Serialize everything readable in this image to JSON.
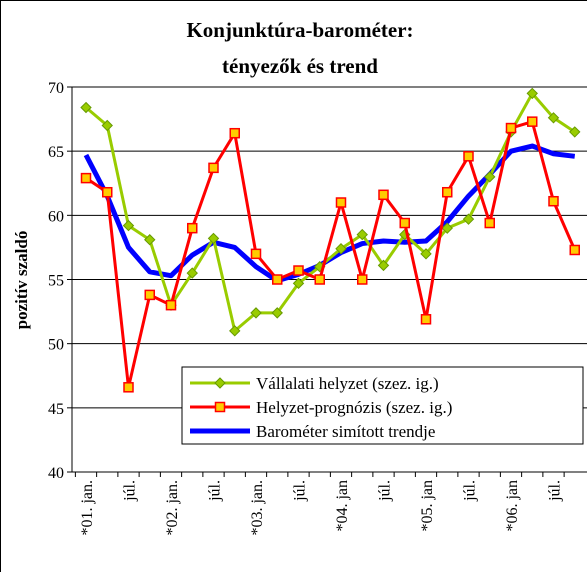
{
  "chart_data": {
    "type": "line",
    "title": "Konjunktúra-barométer:",
    "subtitle": "tényezők és trend",
    "y_label": "pozitív szaldó",
    "categories": [
      "*01. jan.",
      null,
      "júl.",
      null,
      "*02. jan.",
      null,
      "júl.",
      null,
      "*03. jan.",
      null,
      "júl.",
      null,
      "*04. jan",
      null,
      "júl.",
      null,
      "*05. jan",
      null,
      "júl.",
      null,
      "*06. jan",
      null,
      "júl.",
      null
    ],
    "series": [
      {
        "name": "Vállalati helyzet (szez. ig.)",
        "color": "#99cc00",
        "marker": "diamond",
        "values": [
          68.4,
          67.0,
          59.2,
          58.1,
          53.0,
          55.5,
          58.2,
          51.0,
          52.4,
          52.4,
          54.7,
          56.0,
          57.4,
          58.5,
          56.1,
          58.5,
          57.0,
          59.0,
          59.7,
          63.0,
          66.5,
          69.5,
          67.6,
          66.5
        ]
      },
      {
        "name": "Helyzet-prognózis (szez. ig.)",
        "color": "#ff0000",
        "marker": "square",
        "values": [
          62.9,
          61.8,
          46.6,
          53.8,
          53.0,
          59.0,
          63.7,
          66.4,
          57.0,
          55.0,
          55.7,
          55.0,
          61.0,
          55.0,
          61.6,
          59.4,
          51.9,
          61.8,
          64.6,
          59.4,
          66.8,
          67.3,
          61.1,
          57.3
        ]
      },
      {
        "name": "Barométer simított trendje",
        "color": "#0000ff",
        "marker": "none",
        "values": [
          64.7,
          61.5,
          57.5,
          55.6,
          55.3,
          56.9,
          57.9,
          57.5,
          56.0,
          54.9,
          55.4,
          56.1,
          57.1,
          57.8,
          58.0,
          57.9,
          58.0,
          59.5,
          61.5,
          63.2,
          65.0,
          65.4,
          64.8,
          64.6
        ]
      }
    ],
    "ylim": [
      40,
      70
    ],
    "yticks": [
      40,
      45,
      50,
      55,
      60,
      65,
      70
    ],
    "grid": true
  }
}
